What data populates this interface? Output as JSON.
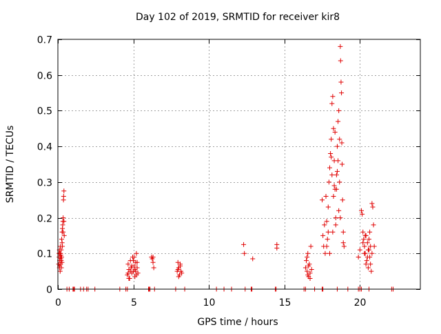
{
  "chart_data": {
    "type": "scatter",
    "title": "Day 102 of 2019, SRMTID for receiver kir8",
    "xlabel": "GPS time / hours",
    "ylabel": "SRMTID / TECUs",
    "xlim": [
      0,
      24
    ],
    "ylim": [
      0,
      0.7
    ],
    "xticks": [
      0,
      5,
      10,
      15,
      20
    ],
    "xtick_labels": [
      "0",
      "5",
      "10",
      "15",
      "20"
    ],
    "yticks": [
      0,
      0.1,
      0.2,
      0.3,
      0.4,
      0.5,
      0.6,
      0.7
    ],
    "ytick_labels": [
      "0",
      "0.1",
      "0.2",
      "0.3",
      "0.4",
      "0.5",
      "0.6",
      "0.7"
    ],
    "grid": true,
    "marker": "+",
    "colors": {
      "marker": "#e00000",
      "grid": "#a0a0a0",
      "axis": "#000000"
    },
    "series": [
      {
        "name": "SRMTID",
        "points": [
          [
            0.05,
            0.07
          ],
          [
            0.07,
            0.1
          ],
          [
            0.08,
            0.09
          ],
          [
            0.1,
            0.06
          ],
          [
            0.1,
            0.11
          ],
          [
            0.12,
            0.08
          ],
          [
            0.13,
            0.1
          ],
          [
            0.15,
            0.05
          ],
          [
            0.15,
            0.09
          ],
          [
            0.17,
            0.12
          ],
          [
            0.18,
            0.07
          ],
          [
            0.2,
            0.095
          ],
          [
            0.2,
            0.085
          ],
          [
            0.22,
            0.11
          ],
          [
            0.23,
            0.06
          ],
          [
            0.25,
            0.14
          ],
          [
            0.25,
            0.09
          ],
          [
            0.27,
            0.075
          ],
          [
            0.28,
            0.16
          ],
          [
            0.3,
            0.17
          ],
          [
            0.3,
            0.12
          ],
          [
            0.32,
            0.18
          ],
          [
            0.33,
            0.19
          ],
          [
            0.35,
            0.2
          ],
          [
            0.35,
            0.16
          ],
          [
            0.37,
            0.25
          ],
          [
            0.38,
            0.26
          ],
          [
            0.4,
            0.275
          ],
          [
            0.4,
            0.19
          ],
          [
            0.42,
            0.15
          ],
          [
            0.12,
            0.065
          ],
          [
            0.18,
            0.1
          ],
          [
            0.22,
            0.08
          ],
          [
            0.28,
            0.13
          ],
          [
            4.6,
            0.04
          ],
          [
            4.65,
            0.07
          ],
          [
            4.7,
            0.055
          ],
          [
            4.75,
            0.03
          ],
          [
            4.8,
            0.08
          ],
          [
            4.85,
            0.06
          ],
          [
            4.9,
            0.045
          ],
          [
            4.95,
            0.09
          ],
          [
            5.0,
            0.05
          ],
          [
            5.05,
            0.065
          ],
          [
            5.1,
            0.035
          ],
          [
            5.15,
            0.075
          ],
          [
            5.2,
            0.1
          ],
          [
            5.25,
            0.06
          ],
          [
            5.3,
            0.045
          ],
          [
            4.7,
            0.03
          ],
          [
            4.9,
            0.065
          ],
          [
            5.0,
            0.08
          ],
          [
            5.1,
            0.055
          ],
          [
            5.2,
            0.04
          ],
          [
            4.8,
            0.05
          ],
          [
            5.05,
            0.09
          ],
          [
            5.25,
            0.075
          ],
          [
            4.65,
            0.045
          ],
          [
            5.15,
            0.05
          ],
          [
            6.2,
            0.09
          ],
          [
            6.25,
            0.085
          ],
          [
            6.3,
            0.075
          ],
          [
            6.35,
            0.06
          ],
          [
            6.3,
            0.09
          ],
          [
            7.9,
            0.05
          ],
          [
            7.95,
            0.075
          ],
          [
            8.0,
            0.06
          ],
          [
            8.05,
            0.04
          ],
          [
            8.1,
            0.07
          ],
          [
            8.15,
            0.05
          ],
          [
            8.2,
            0.045
          ],
          [
            8.0,
            0.035
          ],
          [
            8.1,
            0.065
          ],
          [
            7.95,
            0.055
          ],
          [
            12.3,
            0.125
          ],
          [
            12.35,
            0.1
          ],
          [
            12.9,
            0.085
          ],
          [
            14.5,
            0.125
          ],
          [
            14.5,
            0.115
          ],
          [
            16.4,
            0.06
          ],
          [
            16.45,
            0.08
          ],
          [
            16.5,
            0.05
          ],
          [
            16.55,
            0.1
          ],
          [
            16.6,
            0.035
          ],
          [
            16.65,
            0.07
          ],
          [
            16.7,
            0.045
          ],
          [
            16.75,
            0.12
          ],
          [
            16.8,
            0.055
          ],
          [
            16.5,
            0.09
          ],
          [
            16.6,
            0.065
          ],
          [
            16.7,
            0.03
          ],
          [
            16.55,
            0.04
          ],
          [
            17.5,
            0.25
          ],
          [
            17.55,
            0.15
          ],
          [
            17.6,
            0.12
          ],
          [
            17.65,
            0.18
          ],
          [
            17.7,
            0.1
          ],
          [
            17.75,
            0.26
          ],
          [
            17.8,
            0.19
          ],
          [
            17.85,
            0.14
          ],
          [
            17.9,
            0.23
          ],
          [
            17.95,
            0.3
          ],
          [
            18.0,
            0.34
          ],
          [
            18.05,
            0.38
          ],
          [
            18.1,
            0.42
          ],
          [
            18.15,
            0.52
          ],
          [
            18.2,
            0.54
          ],
          [
            18.25,
            0.45
          ],
          [
            18.3,
            0.36
          ],
          [
            18.35,
            0.28
          ],
          [
            18.4,
            0.2
          ],
          [
            18.45,
            0.32
          ],
          [
            18.5,
            0.4
          ],
          [
            18.55,
            0.47
          ],
          [
            18.6,
            0.5
          ],
          [
            18.65,
            0.3
          ],
          [
            18.7,
            0.68
          ],
          [
            18.72,
            0.64
          ],
          [
            18.75,
            0.58
          ],
          [
            18.78,
            0.55
          ],
          [
            18.8,
            0.41
          ],
          [
            18.82,
            0.35
          ],
          [
            18.85,
            0.25
          ],
          [
            18.9,
            0.16
          ],
          [
            18.95,
            0.12
          ],
          [
            18.6,
            0.22
          ],
          [
            18.4,
            0.18
          ],
          [
            18.2,
            0.16
          ],
          [
            18.0,
            0.1
          ],
          [
            17.8,
            0.12
          ],
          [
            18.3,
            0.29
          ],
          [
            18.1,
            0.37
          ],
          [
            18.5,
            0.33
          ],
          [
            18.7,
            0.2
          ],
          [
            18.9,
            0.13
          ],
          [
            17.9,
            0.16
          ],
          [
            18.25,
            0.26
          ],
          [
            18.65,
            0.42
          ],
          [
            18.35,
            0.44
          ],
          [
            18.45,
            0.28
          ],
          [
            18.15,
            0.32
          ],
          [
            18.55,
            0.36
          ],
          [
            19.9,
            0.09
          ],
          [
            20.0,
            0.11
          ],
          [
            20.1,
            0.22
          ],
          [
            20.15,
            0.21
          ],
          [
            20.2,
            0.16
          ],
          [
            20.25,
            0.14
          ],
          [
            20.3,
            0.12
          ],
          [
            20.35,
            0.1
          ],
          [
            20.4,
            0.15
          ],
          [
            20.45,
            0.08
          ],
          [
            20.5,
            0.13
          ],
          [
            20.55,
            0.06
          ],
          [
            20.6,
            0.11
          ],
          [
            20.65,
            0.09
          ],
          [
            20.7,
            0.07
          ],
          [
            20.75,
            0.05
          ],
          [
            20.8,
            0.24
          ],
          [
            20.85,
            0.23
          ],
          [
            20.9,
            0.18
          ],
          [
            20.95,
            0.12
          ],
          [
            20.3,
            0.1
          ],
          [
            20.5,
            0.09
          ],
          [
            20.7,
            0.12
          ],
          [
            20.4,
            0.07
          ],
          [
            20.6,
            0.14
          ],
          [
            20.2,
            0.13
          ],
          [
            20.8,
            0.1
          ],
          [
            20.35,
            0.15
          ],
          [
            20.55,
            0.11
          ],
          [
            20.65,
            0.16
          ],
          [
            0.6,
            0.0
          ],
          [
            0.75,
            0.0
          ],
          [
            1.0,
            0.0
          ],
          [
            1.05,
            0.0
          ],
          [
            1.1,
            0.0
          ],
          [
            1.5,
            0.0
          ],
          [
            1.7,
            0.0
          ],
          [
            1.9,
            0.0
          ],
          [
            2.0,
            0.0
          ],
          [
            2.45,
            0.0
          ],
          [
            4.1,
            0.0
          ],
          [
            4.5,
            0.0
          ],
          [
            4.6,
            0.0
          ],
          [
            6.0,
            0.0
          ],
          [
            6.05,
            0.0
          ],
          [
            6.1,
            0.0
          ],
          [
            6.4,
            0.0
          ],
          [
            7.8,
            0.0
          ],
          [
            8.4,
            0.0
          ],
          [
            10.5,
            0.0
          ],
          [
            11.0,
            0.0
          ],
          [
            11.5,
            0.0
          ],
          [
            12.4,
            0.0
          ],
          [
            12.8,
            0.0
          ],
          [
            12.85,
            0.0
          ],
          [
            14.4,
            0.0
          ],
          [
            14.45,
            0.0
          ],
          [
            16.3,
            0.0
          ],
          [
            16.4,
            0.0
          ],
          [
            17.0,
            0.0
          ],
          [
            17.5,
            0.0
          ],
          [
            17.55,
            0.0
          ],
          [
            18.5,
            0.0
          ],
          [
            19.2,
            0.0
          ],
          [
            19.9,
            0.0
          ],
          [
            20.0,
            0.0
          ],
          [
            20.1,
            0.0
          ],
          [
            20.6,
            0.0
          ],
          [
            22.1,
            0.0
          ],
          [
            22.2,
            0.0
          ]
        ]
      }
    ]
  }
}
